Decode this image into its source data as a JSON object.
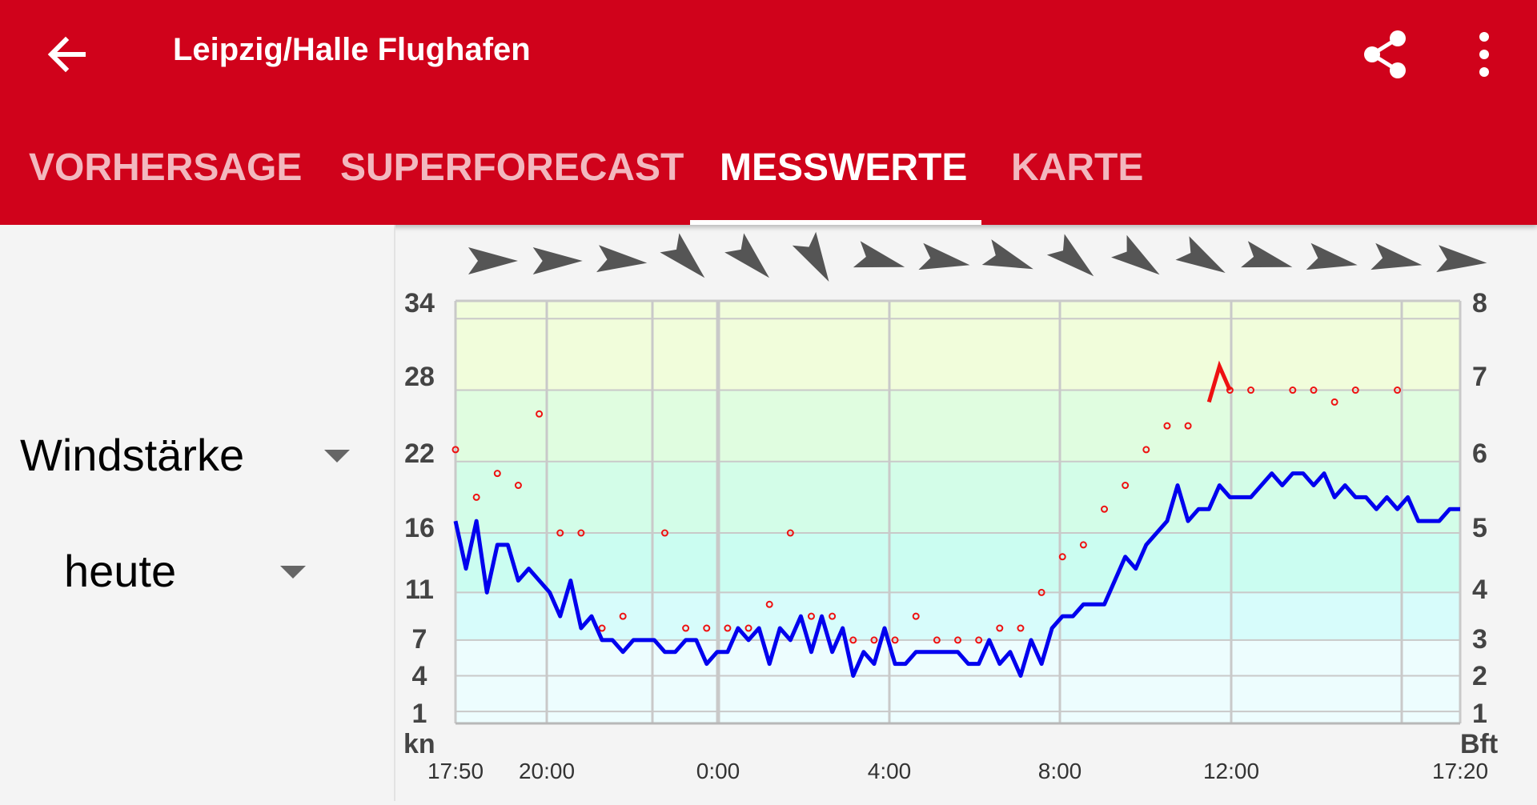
{
  "app_bar": {
    "title": "Leipzig/Halle Flughafen",
    "back_icon": "arrow-left-icon",
    "share_icon": "share-icon",
    "menu_icon": "more-vertical-icon",
    "color": "#d0021b"
  },
  "tabs": [
    {
      "label": "VORHERSAGE",
      "active": false
    },
    {
      "label": "SUPERFORECAST",
      "active": false
    },
    {
      "label": "MESSWERTE",
      "active": true
    },
    {
      "label": "KARTE",
      "active": false
    }
  ],
  "controls": {
    "variable": "Windstärke",
    "period": "heute"
  },
  "chart_data": {
    "type": "line",
    "x_axis": {
      "ticks": [
        "17:50",
        "20:00",
        "0:00",
        "4:00",
        "8:00",
        "12:00",
        "17:20"
      ]
    },
    "y_left": {
      "unit": "kn",
      "ticks": [
        "34",
        "28",
        "22",
        "16",
        "11",
        "7",
        "4",
        "1"
      ]
    },
    "y_right": {
      "unit": "Bft",
      "ticks": [
        "8",
        "7",
        "6",
        "5",
        "4",
        "3",
        "2",
        "1"
      ]
    },
    "series": [
      {
        "kind": "wind-speed-line",
        "color": "#0000ee",
        "values": [
          17,
          13,
          17,
          11,
          15,
          15,
          12,
          13,
          12,
          11,
          9,
          12,
          8,
          9,
          7,
          7,
          6,
          7,
          7,
          7,
          6,
          6,
          7,
          7,
          5,
          6,
          6,
          8,
          7,
          8,
          5,
          8,
          7,
          9,
          6,
          9,
          6,
          8,
          4,
          6,
          5,
          8,
          5,
          5,
          6,
          6,
          6,
          6,
          6,
          5,
          5,
          7,
          5,
          6,
          4,
          7,
          5,
          8,
          9,
          9,
          10,
          10,
          10,
          12,
          14,
          13,
          15,
          16,
          17,
          20,
          17,
          18,
          18,
          20,
          19,
          19,
          19,
          20,
          21,
          20,
          21,
          21,
          20,
          21,
          19,
          20,
          19,
          19,
          18,
          19,
          18,
          19,
          17,
          17,
          17,
          18,
          18
        ]
      },
      {
        "kind": "gust-points",
        "color": "#ee1111",
        "points": [
          [
            0,
            23
          ],
          [
            2,
            19
          ],
          [
            4,
            21
          ],
          [
            6,
            20
          ],
          [
            8,
            26
          ],
          [
            10,
            16
          ],
          [
            12,
            16
          ],
          [
            14,
            8
          ],
          [
            16,
            9
          ],
          [
            20,
            16
          ],
          [
            22,
            8
          ],
          [
            24,
            8
          ],
          [
            26,
            8
          ],
          [
            28,
            8
          ],
          [
            30,
            10
          ],
          [
            32,
            16
          ],
          [
            34,
            9
          ],
          [
            36,
            9
          ],
          [
            38,
            7
          ],
          [
            40,
            7
          ],
          [
            42,
            7
          ],
          [
            44,
            9
          ],
          [
            46,
            7
          ],
          [
            48,
            7
          ],
          [
            50,
            7
          ],
          [
            52,
            8
          ],
          [
            54,
            8
          ],
          [
            56,
            11
          ],
          [
            58,
            14
          ],
          [
            60,
            15
          ],
          [
            62,
            18
          ],
          [
            64,
            20
          ],
          [
            66,
            23
          ],
          [
            68,
            25
          ],
          [
            70,
            25
          ],
          [
            74,
            28
          ],
          [
            76,
            28
          ],
          [
            80,
            28
          ],
          [
            82,
            28
          ],
          [
            84,
            27
          ],
          [
            86,
            28
          ],
          [
            90,
            28
          ]
        ]
      },
      {
        "kind": "max-gust-mark",
        "color": "#ee1111",
        "points": [
          [
            72,
            27
          ],
          [
            73,
            30
          ],
          [
            74,
            28
          ]
        ]
      }
    ],
    "wind_directions_deg": [
      270,
      270,
      275,
      315,
      315,
      330,
      285,
      280,
      290,
      310,
      305,
      300,
      285,
      280,
      280,
      275
    ],
    "direction_icon": "wind-arrow-icon",
    "band_colors": [
      "#f1fddb",
      "#e0fde0",
      "#d3fde8",
      "#cbfdf1",
      "#d7fcfb",
      "#edfdfe"
    ],
    "grid": true
  }
}
